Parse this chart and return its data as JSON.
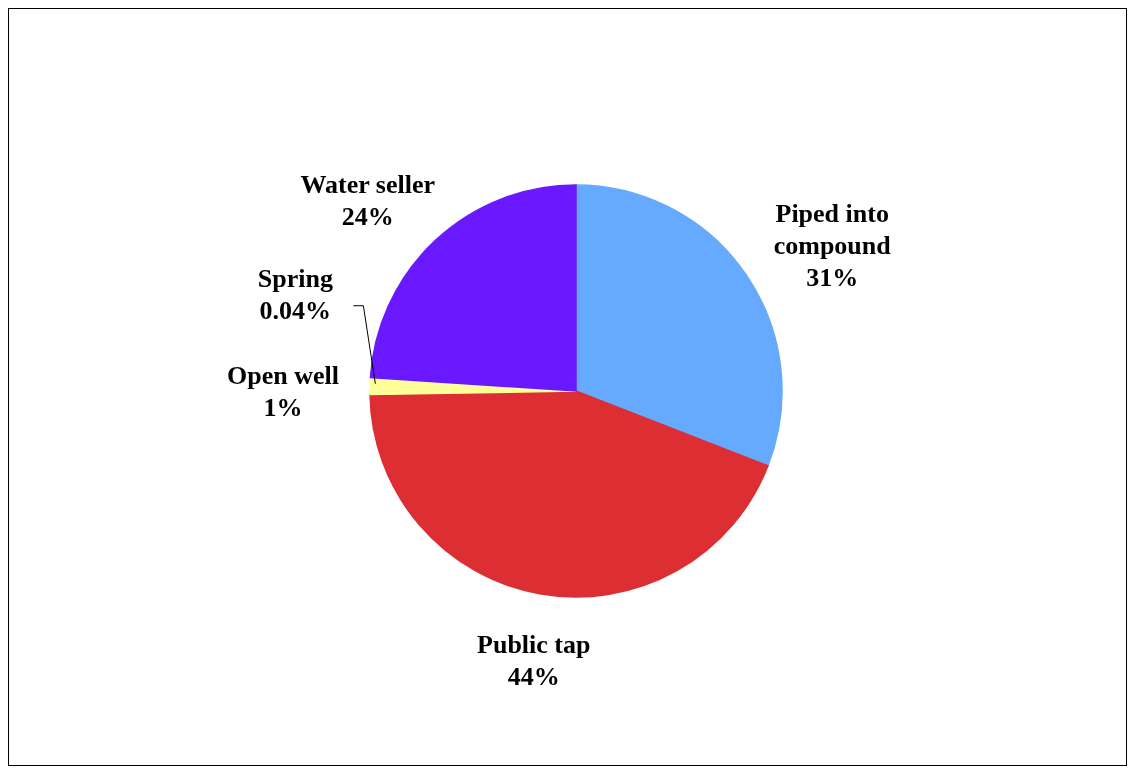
{
  "chart_data": {
    "type": "pie",
    "categories": [
      "Piped into compound",
      "Public tap",
      "Open well",
      "Spring",
      "Water seller"
    ],
    "values": [
      31,
      44,
      1,
      0.04,
      24
    ],
    "value_labels": [
      "31%",
      "44%",
      "1%",
      "0.04%",
      "24%"
    ],
    "colors": [
      "#66aaff",
      "#dd2e33",
      "#ffff99",
      "#ffff99",
      "#6a18ff"
    ]
  }
}
